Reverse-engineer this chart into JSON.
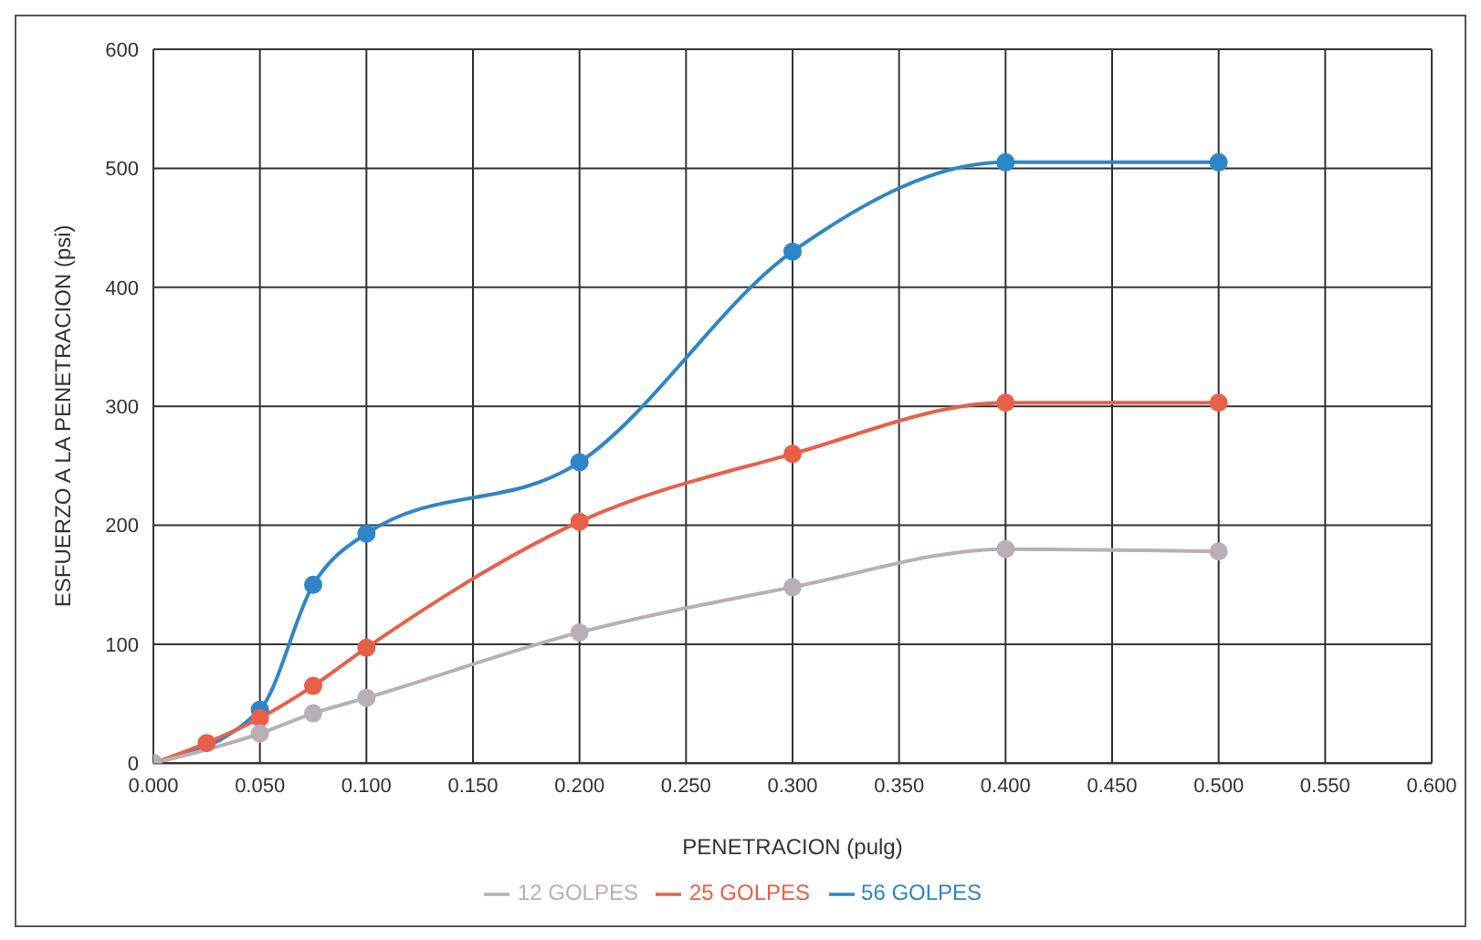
{
  "chart_data": {
    "type": "line",
    "xlabel": "PENETRACION (pulg)",
    "ylabel": "ESFUERZO A LA PENETRACION (psi)",
    "x": [
      0,
      0.025,
      0.05,
      0.075,
      0.1,
      0.2,
      0.3,
      0.4,
      0.5
    ],
    "series": [
      {
        "name": "56 GOLPES",
        "color": "#2e86c8",
        "values": [
          0,
          null,
          45,
          150,
          193,
          253,
          430,
          505,
          505
        ]
      },
      {
        "name": "25 GOLPES",
        "color": "#e8604a",
        "values": [
          0,
          17,
          38,
          65,
          97,
          203,
          260,
          303,
          303
        ]
      },
      {
        "name": "12 GOLPES",
        "color": "#b8b0b4",
        "values": [
          0,
          null,
          25,
          42,
          55,
          110,
          148,
          180,
          178
        ]
      }
    ],
    "xlim": [
      0,
      0.6
    ],
    "xticks": [
      {
        "value": 0,
        "label": "0.000"
      },
      {
        "value": 0.05,
        "label": "0.050"
      },
      {
        "value": 0.1,
        "label": "0.100"
      },
      {
        "value": 0.15,
        "label": "0.150"
      },
      {
        "value": 0.2,
        "label": "0.200"
      },
      {
        "value": 0.25,
        "label": "0.250"
      },
      {
        "value": 0.3,
        "label": "0.300"
      },
      {
        "value": 0.35,
        "label": "0.350"
      },
      {
        "value": 0.4,
        "label": "0.400"
      },
      {
        "value": 0.45,
        "label": "0.450"
      },
      {
        "value": 0.5,
        "label": "0.500"
      },
      {
        "value": 0.55,
        "label": "0.550"
      },
      {
        "value": 0.6,
        "label": "0.600"
      }
    ],
    "ylim": [
      0,
      600
    ],
    "yticks": [
      0,
      100,
      200,
      300,
      400,
      500,
      600
    ],
    "grid": true,
    "legend": "bottom",
    "marker": "circle",
    "line_style": "solid"
  }
}
